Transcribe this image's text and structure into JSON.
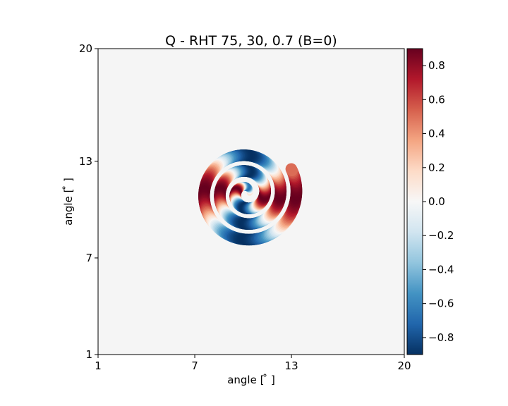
{
  "chart_data": {
    "type": "heatmap",
    "title": "Q - RHT 75, 30, 0.7 (B=0)",
    "xlabel": "angle [$^\\circ$]",
    "ylabel": "angle [$^\\circ$]",
    "xlabel_text": "angle [ ̊ ]",
    "ylabel_text": "angle [ ̊ ]",
    "xlim": [
      1,
      20
    ],
    "ylim": [
      1,
      20
    ],
    "x_ticks": [
      1,
      7,
      13,
      20
    ],
    "y_ticks": [
      1,
      7,
      13,
      20
    ],
    "grid": false,
    "colormap": "RdBu_r",
    "colorbar": {
      "vmin": -0.9,
      "vmax": 0.9,
      "ticks": [
        0.8,
        0.6,
        0.4,
        0.2,
        0.0,
        -0.2,
        -0.4,
        -0.6,
        -0.8
      ],
      "tick_labels": [
        "0.8",
        "0.6",
        "0.4",
        "0.2",
        "0.0",
        "−0.2",
        "−0.4",
        "−0.6",
        "−0.8"
      ]
    },
    "structure": {
      "description_values": {
        "center": [
          10.2,
          11
        ],
        "a": 0.18,
        "b": 0.155,
        "theta_max": 19.35,
        "band_half_width": 0.36,
        "peak_abs_Q": 0.9
      }
    }
  }
}
